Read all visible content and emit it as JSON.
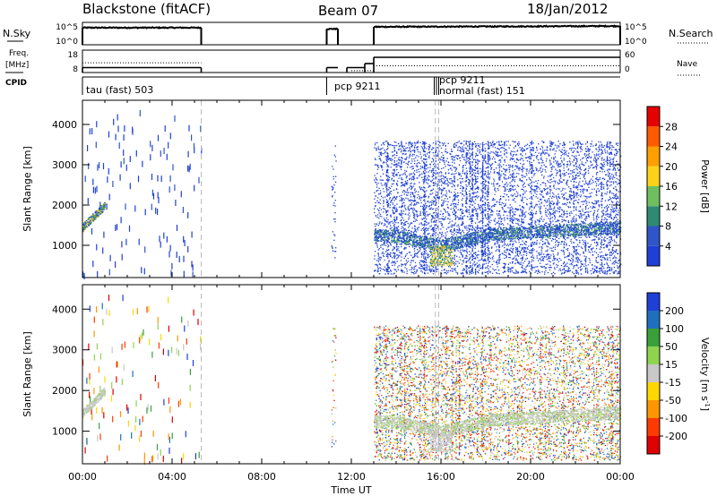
{
  "header": {
    "station": "Blackstone (fitACF)",
    "beam": "Beam 07",
    "date": "18/Jan/2012"
  },
  "strip_labels": {
    "nsky": "N.Sky",
    "freq_line1": "Freq.",
    "freq_line2": "[MHz]",
    "cpid": "CPID",
    "nsearch": "N.Search",
    "nave": "Nave"
  },
  "cpid_labels": [
    {
      "text": "tau (fast) 503",
      "time": 0.0
    },
    {
      "text": "pcp 9211",
      "time": 10.9
    },
    {
      "text": "pcp 9211",
      "time": 15.7
    },
    {
      "text": "normal (fast) 151",
      "time": 15.8
    }
  ],
  "colors": {
    "power": [
      "#1f3fd6",
      "#2f55c8",
      "#2f8a73",
      "#6fbf5f",
      "#ffd21a",
      "#ff9f00",
      "#ff5a00",
      "#e60000"
    ],
    "velocity": [
      "#e00000",
      "#ff3a00",
      "#ff9600",
      "#ffd700",
      "#c8c8c8",
      "#8fd44f",
      "#3aa03a",
      "#1f6fbf",
      "#1f3fd6"
    ]
  },
  "chart_data": [
    {
      "type": "line",
      "title": "N.Sky / N.Search",
      "x_unit": "hours UT",
      "left_ticks": [
        "10^5",
        "10^0"
      ],
      "right_ticks": [
        "10^5",
        "10^0"
      ],
      "series": [
        {
          "name": "N.Sky",
          "segments": [
            {
              "x": [
                0.0,
                5.3
              ],
              "y": [
                4.2,
                4.2
              ]
            },
            {
              "x": [
                10.9,
                11.4
              ],
              "y": [
                3.9,
                3.9
              ]
            },
            {
              "x": [
                13.0,
                24.0
              ],
              "y": [
                4.4,
                4.6
              ]
            }
          ]
        },
        {
          "name": "N.Search",
          "segments": []
        }
      ]
    },
    {
      "type": "line",
      "title": "Freq. [MHz] / Nave",
      "x_unit": "hours UT",
      "left_ticks": [
        18,
        8
      ],
      "right_ticks": [
        60,
        0
      ],
      "series": [
        {
          "name": "Freq. [MHz]",
          "segments": [
            {
              "x": [
                0.0,
                5.3
              ],
              "y": [
                10.2,
                10.2
              ]
            },
            {
              "x": [
                10.9,
                11.4
              ],
              "y": [
                10.2,
                10.2
              ]
            },
            {
              "x": [
                11.8,
                12.6
              ],
              "y": [
                10.2,
                10.2
              ]
            },
            {
              "x": [
                12.6,
                13.0
              ],
              "y": [
                12.0,
                12.0
              ]
            },
            {
              "x": [
                13.0,
                24.0
              ],
              "y": [
                14.8,
                14.8
              ]
            }
          ]
        },
        {
          "name": "Nave",
          "segments": [
            {
              "x": [
                0.0,
                5.3
              ],
              "y": [
                26,
                26
              ]
            },
            {
              "x": [
                12.0,
                13.0
              ],
              "y": [
                5,
                5
              ]
            },
            {
              "x": [
                13.0,
                24.0
              ],
              "y": [
                18,
                18
              ]
            }
          ]
        }
      ]
    },
    {
      "type": "heatmap",
      "title": "Power [dB]",
      "xlabel": "",
      "ylabel": "Slant Range [km]",
      "xlim": [
        0,
        24
      ],
      "ylim": [
        200,
        4600
      ],
      "yticks": [
        1000,
        2000,
        3000,
        4000
      ],
      "colorbar": {
        "label": "Power [dB]",
        "ticks": [
          4,
          8,
          12,
          16,
          20,
          24,
          28
        ],
        "range": [
          0,
          32
        ]
      },
      "features": [
        {
          "x_range": [
            0.0,
            1.0
          ],
          "y_range": [
            1400,
            2100
          ],
          "value": 14
        },
        {
          "x_range": [
            13.0,
            24.0
          ],
          "y_range": [
            1000,
            1500
          ],
          "value": 9
        },
        {
          "x_range": [
            15.5,
            16.5
          ],
          "y_range": [
            400,
            1100
          ],
          "value": 18
        }
      ]
    },
    {
      "type": "heatmap",
      "title": "Velocity [m s^-1]",
      "xlabel": "Time UT",
      "ylabel": "Slant Range [km]",
      "xlim": [
        0,
        24
      ],
      "ylim": [
        200,
        4600
      ],
      "yticks": [
        1000,
        2000,
        3000,
        4000
      ],
      "xticks": [
        "00:00",
        "04:00",
        "08:00",
        "12:00",
        "16:00",
        "20:00",
        "00:00"
      ],
      "colorbar": {
        "label": "Velocity [m s^-1]",
        "ticks": [
          200,
          100,
          50,
          15,
          -15,
          -50,
          -100,
          -200
        ],
        "range": [
          -250,
          250
        ]
      },
      "features": [
        {
          "x_range": [
            0.0,
            1.0
          ],
          "y_range": [
            1400,
            2100
          ],
          "value": -10
        },
        {
          "x_range": [
            13.0,
            24.0
          ],
          "y_range": [
            1000,
            1500
          ],
          "value": 0
        }
      ]
    }
  ],
  "axis": {
    "xticks": [
      "00:00",
      "04:00",
      "08:00",
      "12:00",
      "16:00",
      "20:00",
      "00:00"
    ],
    "xlabel": "Time UT",
    "ylabel": "Slant Range [km]",
    "yticks": [
      "1000",
      "2000",
      "3000",
      "4000"
    ]
  }
}
